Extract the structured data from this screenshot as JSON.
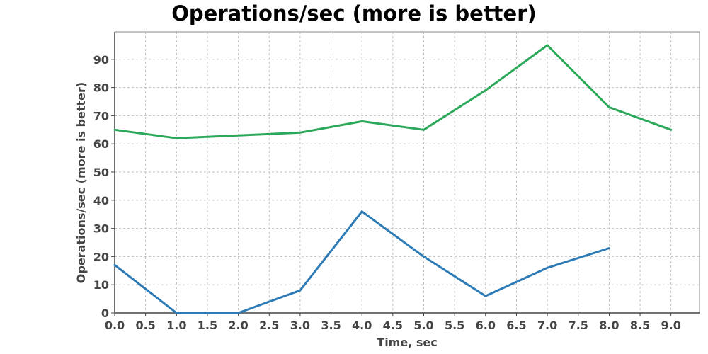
{
  "chart_data": {
    "type": "line",
    "title": "Operations/sec (more is better)",
    "xlabel": "Time, sec",
    "ylabel": "Operations/sec (more is better)",
    "xlim": [
      0,
      9.2
    ],
    "ylim": [
      0,
      99
    ],
    "x_ticks": [
      0.0,
      0.5,
      1.0,
      1.5,
      2.0,
      2.5,
      3.0,
      3.5,
      4.0,
      4.5,
      5.0,
      5.5,
      6.0,
      6.5,
      7.0,
      7.5,
      8.0,
      8.5,
      9.0
    ],
    "x_tick_labels": [
      "0.0",
      "0.5",
      "1.0",
      "1.5",
      "2.0",
      "2.5",
      "3.0",
      "3.5",
      "4.0",
      "4.5",
      "5.0",
      "5.5",
      "6.0",
      "6.5",
      "7.0",
      "7.5",
      "8.0",
      "8.5",
      "9.0"
    ],
    "y_ticks": [
      0,
      10,
      20,
      30,
      40,
      50,
      60,
      70,
      80,
      90
    ],
    "y_tick_labels": [
      "0",
      "10",
      "20",
      "30",
      "40",
      "50",
      "60",
      "70",
      "80",
      "90"
    ],
    "grid": true,
    "legend": "none",
    "series": [
      {
        "color": "#2ca85a",
        "x": [
          0,
          1,
          2,
          3,
          4,
          5,
          6,
          7,
          8,
          9
        ],
        "y": [
          65,
          62,
          63,
          64,
          68,
          65,
          79,
          95,
          73,
          65
        ]
      },
      {
        "color": "#2c7bb6",
        "x": [
          0,
          1,
          2,
          3,
          4,
          5,
          6,
          7,
          8
        ],
        "y": [
          17,
          0,
          0,
          8,
          36,
          20,
          6,
          16,
          23
        ]
      }
    ]
  }
}
